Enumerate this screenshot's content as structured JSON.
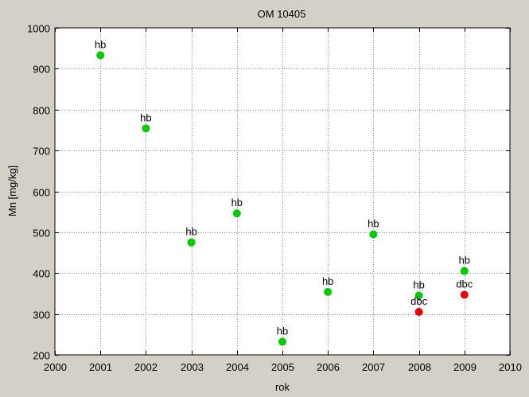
{
  "chart_data": {
    "type": "scatter",
    "title": "OM 10405",
    "xlabel": "rok",
    "ylabel": "Mn [mg/kg]",
    "xlim": [
      2000,
      2010
    ],
    "ylim": [
      200,
      1000
    ],
    "xticks": [
      2000,
      2001,
      2002,
      2003,
      2004,
      2005,
      2006,
      2007,
      2008,
      2009,
      2010
    ],
    "yticks": [
      200,
      300,
      400,
      500,
      600,
      700,
      800,
      900,
      1000
    ],
    "grid": true,
    "colors": {
      "hb": "#00cc00",
      "dbc": "#ee0000"
    },
    "series": [
      {
        "name": "hb",
        "points": [
          {
            "x": 2001,
            "y": 933,
            "label": "hb"
          },
          {
            "x": 2002,
            "y": 754,
            "label": "hb"
          },
          {
            "x": 2003,
            "y": 475,
            "label": "hb"
          },
          {
            "x": 2004,
            "y": 546,
            "label": "hb"
          },
          {
            "x": 2005,
            "y": 232,
            "label": "hb"
          },
          {
            "x": 2006,
            "y": 354,
            "label": "hb"
          },
          {
            "x": 2007,
            "y": 495,
            "label": "hb"
          },
          {
            "x": 2008,
            "y": 345,
            "label": "hb"
          },
          {
            "x": 2009,
            "y": 405,
            "label": "hb"
          }
        ]
      },
      {
        "name": "dbc",
        "points": [
          {
            "x": 2008,
            "y": 305,
            "label": "dbc"
          },
          {
            "x": 2009,
            "y": 347,
            "label": "dbc"
          }
        ]
      }
    ]
  }
}
